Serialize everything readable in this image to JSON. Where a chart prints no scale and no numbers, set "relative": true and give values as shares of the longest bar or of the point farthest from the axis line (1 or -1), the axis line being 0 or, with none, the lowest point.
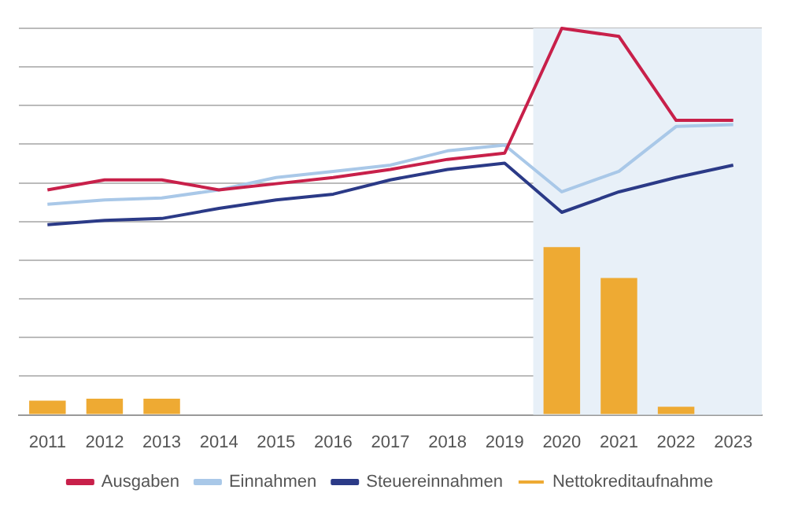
{
  "chart_data": {
    "type": "line",
    "relative": true,
    "categories": [
      "2011",
      "2012",
      "2013",
      "2014",
      "2015",
      "2016",
      "2017",
      "2018",
      "2019",
      "2020",
      "2021",
      "2022",
      "2023"
    ],
    "series": [
      {
        "name": "Nettokreditaufnahme",
        "type": "bar",
        "color": "#eeaa33",
        "values": [
          0.037,
          0.042,
          0.042,
          0,
          0,
          0,
          0,
          0,
          0,
          0.434,
          0.354,
          0.021,
          0
        ]
      },
      {
        "name": "Ausgaben",
        "color": "#c8204a",
        "values": [
          0.582,
          0.608,
          0.608,
          0.582,
          0.598,
          0.614,
          0.635,
          0.661,
          0.677,
          1,
          0.979,
          0.762,
          0.762
        ]
      },
      {
        "name": "Einnahmen",
        "color": "#a9c8e8",
        "values": [
          0.545,
          0.556,
          0.561,
          0.582,
          0.614,
          0.63,
          0.646,
          0.683,
          0.698,
          0.577,
          0.63,
          0.746,
          0.751
        ]
      },
      {
        "name": "Steuereinnahmen",
        "color": "#2b3a87",
        "values": [
          0.492,
          0.503,
          0.508,
          0.534,
          0.556,
          0.571,
          0.608,
          0.635,
          0.651,
          0.524,
          0.577,
          0.614,
          0.646
        ]
      }
    ],
    "bands": [
      {
        "axis": "x",
        "from": "2020",
        "to": "2023",
        "color": "#e8f0f8"
      }
    ],
    "grid": "y",
    "legend": "bottom",
    "marker": "none",
    "line_style": "solid"
  }
}
